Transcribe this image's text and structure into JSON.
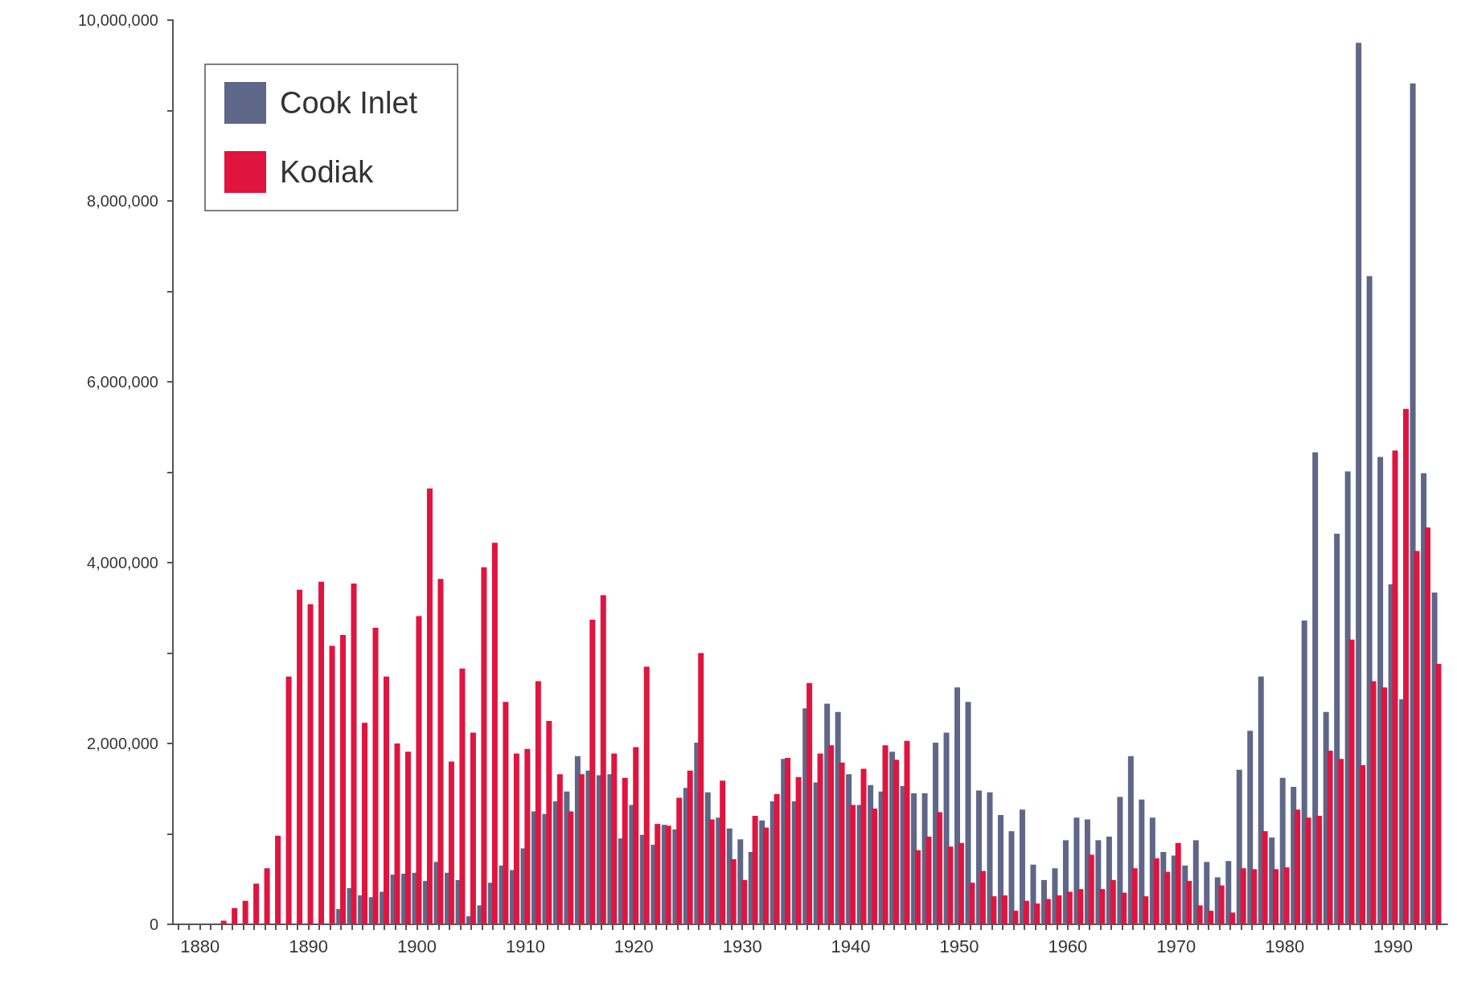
{
  "chart_data": {
    "type": "bar",
    "x": [
      1882,
      1883,
      1884,
      1885,
      1886,
      1887,
      1888,
      1889,
      1890,
      1891,
      1892,
      1893,
      1894,
      1895,
      1896,
      1897,
      1898,
      1899,
      1900,
      1901,
      1902,
      1903,
      1904,
      1905,
      1906,
      1907,
      1908,
      1909,
      1910,
      1911,
      1912,
      1913,
      1914,
      1915,
      1916,
      1917,
      1918,
      1919,
      1920,
      1921,
      1922,
      1923,
      1924,
      1925,
      1926,
      1927,
      1928,
      1929,
      1930,
      1931,
      1932,
      1933,
      1934,
      1935,
      1936,
      1937,
      1938,
      1939,
      1940,
      1941,
      1942,
      1943,
      1944,
      1945,
      1946,
      1947,
      1948,
      1949,
      1950,
      1951,
      1952,
      1953,
      1954,
      1955,
      1956,
      1957,
      1958,
      1959,
      1960,
      1961,
      1962,
      1963,
      1964,
      1965,
      1966,
      1967,
      1968,
      1969,
      1970,
      1971,
      1972,
      1973,
      1974,
      1975,
      1976,
      1977,
      1978,
      1979,
      1980,
      1981,
      1982,
      1983,
      1984,
      1985,
      1986,
      1987,
      1988,
      1989,
      1990,
      1991,
      1992,
      1993,
      1994
    ],
    "series": [
      {
        "name": "Cook Inlet",
        "color": "#5f6788",
        "values": [
          null,
          null,
          null,
          null,
          null,
          null,
          null,
          null,
          null,
          null,
          null,
          170000,
          400000,
          320000,
          300000,
          360000,
          550000,
          560000,
          570000,
          480000,
          690000,
          570000,
          490000,
          90000,
          210000,
          460000,
          650000,
          600000,
          840000,
          1250000,
          1220000,
          1360000,
          1470000,
          1860000,
          1700000,
          1650000,
          1660000,
          950000,
          1320000,
          990000,
          880000,
          1100000,
          1050000,
          1510000,
          2010000,
          1460000,
          1180000,
          1060000,
          940000,
          800000,
          1150000,
          1360000,
          1830000,
          1360000,
          2390000,
          1570000,
          2440000,
          2350000,
          1660000,
          1320000,
          1540000,
          1470000,
          1910000,
          1530000,
          1450000,
          1450000,
          2010000,
          2120000,
          2620000,
          2460000,
          1480000,
          1460000,
          1210000,
          1030000,
          1270000,
          660000,
          490000,
          620000,
          930000,
          1180000,
          1160000,
          930000,
          970000,
          1410000,
          1860000,
          1380000,
          1180000,
          800000,
          760000,
          650000,
          930000,
          690000,
          520000,
          700000,
          1710000,
          2140000,
          2740000,
          960000,
          1620000,
          1520000,
          3360000,
          5220000,
          2350000,
          4320000,
          5010000,
          9750000,
          7170000,
          5170000,
          3760000,
          2490000,
          9300000,
          4990000,
          3670000
        ]
      },
      {
        "name": "Kodiak",
        "color": "#e0153f",
        "values": [
          40000,
          180000,
          260000,
          450000,
          620000,
          980000,
          2740000,
          3700000,
          3540000,
          3790000,
          3080000,
          3200000,
          3770000,
          2230000,
          3280000,
          2740000,
          2000000,
          1910000,
          3410000,
          4820000,
          3820000,
          1800000,
          2830000,
          2120000,
          3950000,
          4220000,
          2460000,
          1890000,
          1940000,
          2690000,
          2250000,
          1660000,
          1250000,
          1660000,
          3370000,
          3640000,
          1890000,
          1620000,
          1960000,
          2850000,
          1110000,
          1090000,
          1400000,
          1700000,
          3000000,
          1160000,
          1590000,
          720000,
          490000,
          1200000,
          1070000,
          1440000,
          1840000,
          1630000,
          2670000,
          1890000,
          1980000,
          1790000,
          1320000,
          1720000,
          1280000,
          1980000,
          1820000,
          2030000,
          820000,
          970000,
          1240000,
          860000,
          900000,
          460000,
          590000,
          310000,
          320000,
          150000,
          260000,
          230000,
          280000,
          320000,
          360000,
          390000,
          770000,
          390000,
          490000,
          350000,
          620000,
          310000,
          730000,
          580000,
          900000,
          480000,
          210000,
          150000,
          430000,
          130000,
          620000,
          610000,
          1030000,
          610000,
          630000,
          1270000,
          1180000,
          1200000,
          1920000,
          1830000,
          3150000,
          1760000,
          2690000,
          2620000,
          5240000,
          5700000,
          4130000,
          4390000,
          2880000
        ]
      }
    ],
    "xlim": [
      1877.5,
      1995
    ],
    "xticks": [
      {
        "value": 1878,
        "label": null
      },
      {
        "value": 1879,
        "label": null
      },
      1880,
      {
        "value": 1881,
        "label": null
      },
      {
        "value": 1882,
        "label": null
      },
      {
        "value": 1883,
        "label": null
      },
      {
        "value": 1884,
        "label": null
      },
      {
        "value": 1885,
        "label": null
      },
      {
        "value": 1886,
        "label": null
      },
      {
        "value": 1887,
        "label": null
      },
      {
        "value": 1888,
        "label": null
      },
      {
        "value": 1889,
        "label": null
      },
      1890,
      {
        "value": 1891,
        "label": null
      },
      {
        "value": 1892,
        "label": null
      },
      {
        "value": 1893,
        "label": null
      },
      {
        "value": 1894,
        "label": null
      },
      {
        "value": 1895,
        "label": null
      },
      {
        "value": 1896,
        "label": null
      },
      {
        "value": 1897,
        "label": null
      },
      {
        "value": 1898,
        "label": null
      },
      {
        "value": 1899,
        "label": null
      },
      1900,
      {
        "value": 1901,
        "label": null
      },
      {
        "value": 1902,
        "label": null
      },
      {
        "value": 1903,
        "label": null
      },
      {
        "value": 1904,
        "label": null
      },
      {
        "value": 1905,
        "label": null
      },
      {
        "value": 1906,
        "label": null
      },
      {
        "value": 1907,
        "label": null
      },
      {
        "value": 1908,
        "label": null
      },
      {
        "value": 1909,
        "label": null
      },
      1910,
      {
        "value": 1911,
        "label": null
      },
      {
        "value": 1912,
        "label": null
      },
      {
        "value": 1913,
        "label": null
      },
      {
        "value": 1914,
        "label": null
      },
      {
        "value": 1915,
        "label": null
      },
      {
        "value": 1916,
        "label": null
      },
      {
        "value": 1917,
        "label": null
      },
      {
        "value": 1918,
        "label": null
      },
      {
        "value": 1919,
        "label": null
      },
      1920,
      {
        "value": 1921,
        "label": null
      },
      {
        "value": 1922,
        "label": null
      },
      {
        "value": 1923,
        "label": null
      },
      {
        "value": 1924,
        "label": null
      },
      {
        "value": 1925,
        "label": null
      },
      {
        "value": 1926,
        "label": null
      },
      {
        "value": 1927,
        "label": null
      },
      {
        "value": 1928,
        "label": null
      },
      {
        "value": 1929,
        "label": null
      },
      1930,
      {
        "value": 1931,
        "label": null
      },
      {
        "value": 1932,
        "label": null
      },
      {
        "value": 1933,
        "label": null
      },
      {
        "value": 1934,
        "label": null
      },
      {
        "value": 1935,
        "label": null
      },
      {
        "value": 1936,
        "label": null
      },
      {
        "value": 1937,
        "label": null
      },
      {
        "value": 1938,
        "label": null
      },
      {
        "value": 1939,
        "label": null
      },
      1940,
      {
        "value": 1941,
        "label": null
      },
      {
        "value": 1942,
        "label": null
      },
      {
        "value": 1943,
        "label": null
      },
      {
        "value": 1944,
        "label": null
      },
      {
        "value": 1945,
        "label": null
      },
      {
        "value": 1946,
        "label": null
      },
      {
        "value": 1947,
        "label": null
      },
      {
        "value": 1948,
        "label": null
      },
      {
        "value": 1949,
        "label": null
      },
      1950,
      {
        "value": 1951,
        "label": null
      },
      {
        "value": 1952,
        "label": null
      },
      {
        "value": 1953,
        "label": null
      },
      {
        "value": 1954,
        "label": null
      },
      {
        "value": 1955,
        "label": null
      },
      {
        "value": 1956,
        "label": null
      },
      {
        "value": 1957,
        "label": null
      },
      {
        "value": 1958,
        "label": null
      },
      {
        "value": 1959,
        "label": null
      },
      1960,
      {
        "value": 1961,
        "label": null
      },
      {
        "value": 1962,
        "label": null
      },
      {
        "value": 1963,
        "label": null
      },
      {
        "value": 1964,
        "label": null
      },
      {
        "value": 1965,
        "label": null
      },
      {
        "value": 1966,
        "label": null
      },
      {
        "value": 1967,
        "label": null
      },
      {
        "value": 1968,
        "label": null
      },
      {
        "value": 1969,
        "label": null
      },
      1970,
      {
        "value": 1971,
        "label": null
      },
      {
        "value": 1972,
        "label": null
      },
      {
        "value": 1973,
        "label": null
      },
      {
        "value": 1974,
        "label": null
      },
      {
        "value": 1975,
        "label": null
      },
      {
        "value": 1976,
        "label": null
      },
      {
        "value": 1977,
        "label": null
      },
      {
        "value": 1978,
        "label": null
      },
      {
        "value": 1979,
        "label": null
      },
      1980,
      {
        "value": 1981,
        "label": null
      },
      {
        "value": 1982,
        "label": null
      },
      {
        "value": 1983,
        "label": null
      },
      {
        "value": 1984,
        "label": null
      },
      {
        "value": 1985,
        "label": null
      },
      {
        "value": 1986,
        "label": null
      },
      {
        "value": 1987,
        "label": null
      },
      {
        "value": 1988,
        "label": null
      },
      {
        "value": 1989,
        "label": null
      },
      1990,
      {
        "value": 1991,
        "label": null
      },
      {
        "value": 1992,
        "label": null
      },
      {
        "value": 1993,
        "label": null
      },
      {
        "value": 1994,
        "label": null
      }
    ],
    "ylim": [
      0,
      10000000
    ],
    "yticks": [
      0,
      {
        "value": 1000000,
        "label": null
      },
      {
        "value": 2000000,
        "label": "2,000,000"
      },
      {
        "value": 3000000,
        "label": null
      },
      {
        "value": 4000000,
        "label": "4,000,000"
      },
      {
        "value": 5000000,
        "label": null
      },
      {
        "value": 6000000,
        "label": "6,000,000"
      },
      {
        "value": 7000000,
        "label": null
      },
      {
        "value": 8000000,
        "label": "8,000,000"
      },
      {
        "value": 9000000,
        "label": null
      },
      {
        "value": 10000000,
        "label": "10,000,000"
      }
    ],
    "grid": false,
    "legend": "top left"
  }
}
